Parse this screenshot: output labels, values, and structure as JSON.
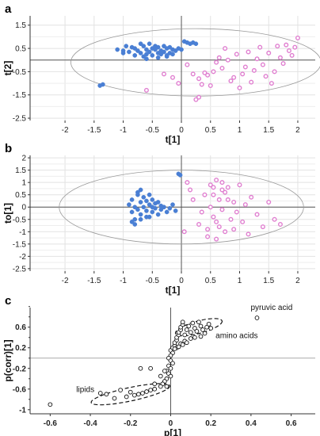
{
  "chart_data": [
    {
      "type": "scatter",
      "panel_label": "a",
      "xlabel": "t[1]",
      "ylabel": "t[2]",
      "xlim": [
        -2.6,
        2.3
      ],
      "ylim": [
        -2.6,
        1.9
      ],
      "x_ticks": [
        -2,
        -1.5,
        -1,
        -0.5,
        0,
        0.5,
        1,
        1.5,
        2
      ],
      "x_tick_labels": [
        "-2",
        "-1.5",
        "-1",
        "-0.5",
        "0",
        "0.5",
        "1",
        "1.5",
        "2"
      ],
      "y_ticks": [
        1.5,
        0.5,
        -0.5,
        -1.5,
        -2.5
      ],
      "y_tick_labels": [
        "1.5",
        "0.5",
        "-0.5",
        "-1.5",
        "-2.5"
      ],
      "grid": true,
      "ellipse": {
        "center": [
          0.25,
          -0.1
        ],
        "radii": [
          2.15,
          1.45
        ]
      },
      "colors": {
        "group1": "#4a7fd4",
        "group2": "#e07fd0"
      },
      "series": [
        {
          "group": "group1",
          "marker": "filled",
          "x": [
            -1.4,
            -1.35,
            -1.1,
            -1.0,
            -1.0,
            -0.95,
            -0.9,
            -0.85,
            -0.8,
            -0.8,
            -0.75,
            -0.7,
            -0.7,
            -0.65,
            -0.65,
            -0.6,
            -0.6,
            -0.55,
            -0.55,
            -0.5,
            -0.5,
            -0.45,
            -0.45,
            -0.4,
            -0.4,
            -0.35,
            -0.35,
            -0.3,
            -0.3,
            -0.25,
            -0.25,
            -0.2,
            -0.2,
            -0.15,
            -0.15,
            -0.1,
            -0.05,
            0.0,
            0.05,
            0.1,
            0.15,
            0.2,
            0.25,
            -0.6,
            -0.4,
            -0.25
          ],
          "y": [
            -1.1,
            -1.05,
            0.45,
            0.3,
            0.4,
            0.6,
            0.35,
            0.55,
            0.2,
            0.5,
            0.4,
            0.7,
            0.3,
            0.6,
            0.15,
            0.45,
            0.25,
            0.7,
            0.35,
            0.5,
            0.2,
            0.45,
            0.6,
            0.3,
            0.55,
            0.4,
            0.25,
            0.6,
            0.35,
            0.5,
            0.2,
            0.55,
            0.3,
            0.45,
            0.25,
            0.4,
            0.5,
            0.45,
            0.8,
            0.75,
            0.7,
            0.75,
            0.7,
            0.05,
            0.1,
            0.15
          ]
        },
        {
          "group": "group2",
          "marker": "open",
          "x": [
            0.2,
            0.25,
            0.3,
            0.35,
            0.4,
            0.45,
            0.5,
            0.55,
            0.6,
            0.65,
            0.7,
            0.75,
            0.8,
            0.85,
            0.9,
            0.95,
            1.0,
            1.05,
            1.1,
            1.15,
            1.2,
            1.25,
            1.3,
            1.35,
            1.4,
            1.45,
            1.5,
            1.55,
            1.6,
            1.65,
            1.7,
            1.75,
            1.8,
            1.85,
            1.9,
            1.95,
            2.0,
            -0.3,
            -0.15,
            -0.05,
            0.1,
            0.3,
            -0.6
          ],
          "y": [
            -0.6,
            -1.7,
            -0.8,
            -1.05,
            -0.55,
            -0.65,
            -1.1,
            -0.5,
            -0.1,
            0.1,
            -0.35,
            0.5,
            0.0,
            -0.9,
            -0.75,
            0.25,
            -1.2,
            -0.6,
            -0.3,
            0.35,
            -0.95,
            -0.45,
            0.05,
            0.55,
            -0.2,
            -0.7,
            0.3,
            -1.0,
            -0.5,
            0.6,
            0.1,
            -0.15,
            0.65,
            0.4,
            0.2,
            0.55,
            0.95,
            -0.6,
            -0.75,
            -1.0,
            -0.2,
            -1.6,
            -1.3
          ]
        }
      ]
    },
    {
      "type": "scatter",
      "panel_label": "b",
      "xlabel": "t[1]",
      "ylabel": "to[1]",
      "xlim": [
        -2.6,
        2.3
      ],
      "ylim": [
        -2.6,
        2.1
      ],
      "x_ticks": [
        -2,
        -1.5,
        -1,
        -0.5,
        0,
        0.5,
        1,
        1.5,
        2
      ],
      "x_tick_labels": [
        "-2",
        "-1.5",
        "-1",
        "-0.5",
        "0",
        "0.5",
        "1",
        "1.5",
        "2"
      ],
      "y_ticks": [
        2,
        1.5,
        1,
        0.5,
        0,
        -0.5,
        -1,
        -1.5,
        -2,
        -2.5
      ],
      "y_tick_labels": [
        "2",
        "1.5",
        "1",
        "0.5",
        "0",
        "-0.5",
        "-1",
        "-1.5",
        "-2",
        "-2.5"
      ],
      "grid": true,
      "ellipse": {
        "center": [
          0.0,
          0.0
        ],
        "radii": [
          2.1,
          1.5
        ]
      },
      "colors": {
        "group1": "#4a7fd4",
        "group2": "#e07fd0"
      },
      "series": [
        {
          "group": "group1",
          "marker": "filled",
          "x": [
            -0.9,
            -0.85,
            -0.85,
            -0.8,
            -0.8,
            -0.75,
            -0.75,
            -0.7,
            -0.7,
            -0.7,
            -0.65,
            -0.65,
            -0.6,
            -0.6,
            -0.55,
            -0.55,
            -0.55,
            -0.5,
            -0.5,
            -0.5,
            -0.45,
            -0.45,
            -0.4,
            -0.4,
            -0.35,
            -0.35,
            -0.3,
            -0.25,
            -0.2,
            -0.15,
            -0.1,
            -0.85,
            -0.8,
            -0.75,
            -0.7,
            -0.6,
            -0.05,
            -0.02
          ],
          "y": [
            0.1,
            -0.2,
            0.3,
            -0.5,
            0.0,
            0.6,
            -0.1,
            0.2,
            -0.3,
            0.7,
            0.0,
            0.4,
            -0.15,
            0.25,
            0.1,
            -0.4,
            0.5,
            0.0,
            0.3,
            -0.2,
            0.15,
            -0.05,
            0.2,
            -0.3,
            0.05,
            -0.1,
            0.0,
            -0.2,
            -0.05,
            0.1,
            -0.15,
            -0.6,
            -0.7,
            0.5,
            -0.5,
            -0.4,
            1.35,
            1.3
          ]
        },
        {
          "group": "group2",
          "marker": "open",
          "x": [
            0.1,
            0.15,
            0.2,
            0.3,
            0.35,
            0.4,
            0.45,
            0.5,
            0.5,
            0.55,
            0.6,
            0.6,
            0.65,
            0.65,
            0.7,
            0.7,
            0.75,
            0.75,
            0.8,
            0.85,
            0.9,
            0.95,
            1.0,
            1.05,
            1.1,
            1.15,
            1.2,
            1.3,
            1.4,
            1.5,
            1.6,
            1.7,
            0.05,
            0.55,
            0.6,
            0.7,
            0.8,
            0.9,
            0.45,
            0.55
          ],
          "y": [
            1.0,
            0.7,
            0.3,
            -0.7,
            -0.2,
            0.5,
            -0.9,
            0.0,
            0.9,
            -0.4,
            1.1,
            -1.3,
            0.3,
            -0.8,
            1.0,
            -0.1,
            0.6,
            -1.0,
            0.8,
            -0.5,
            0.2,
            -0.2,
            0.9,
            -0.6,
            0.1,
            -1.1,
            0.4,
            -0.3,
            -0.8,
            0.2,
            -0.5,
            -0.7,
            -1.0,
            0.5,
            -0.6,
            0.7,
            0.3,
            -0.9,
            -1.2,
            0.8
          ]
        }
      ]
    },
    {
      "type": "scatter",
      "panel_label": "c",
      "xlabel": "p[1]",
      "ylabel": "p(corr)[1]",
      "xlim": [
        -0.7,
        0.72
      ],
      "ylim": [
        -1.08,
        0.98
      ],
      "x_ticks": [
        -0.6,
        -0.4,
        -0.2,
        0,
        0.2,
        0.4,
        0.6
      ],
      "x_tick_labels": [
        "-0.6",
        "-0.4",
        "-0.2",
        "0",
        "0.2",
        "0.4",
        "0.6"
      ],
      "y_ticks": [
        0.6,
        0.2,
        -0.2,
        -0.6,
        -1
      ],
      "y_tick_labels": [
        "0.6",
        "0.2",
        "-0.2",
        "-0.6",
        "-1"
      ],
      "extra_y_ticks": [
        1,
        0.8,
        0.4,
        0,
        -0.4,
        -0.8
      ],
      "grid": false,
      "annotations": {
        "pyruvic": "pyruvic acid",
        "amino": "amino acids",
        "lipids": "lipids"
      },
      "groups_outlined": [
        {
          "name": "amino acids",
          "center": [
            0.14,
            0.6
          ],
          "radii": [
            0.12,
            0.12
          ],
          "rotate": -15
        },
        {
          "name": "lipids",
          "center": [
            -0.2,
            -0.7
          ],
          "radii": [
            0.2,
            0.13
          ],
          "rotate": -12
        }
      ],
      "series": [
        {
          "marker": "open",
          "x": [
            0.43,
            0.0,
            0.01,
            0.02,
            0.02,
            0.03,
            0.03,
            0.04,
            0.04,
            0.05,
            0.05,
            0.06,
            0.06,
            0.07,
            0.08,
            0.09,
            0.1,
            0.11,
            0.12,
            0.13,
            0.14,
            0.15,
            0.16,
            0.17,
            0.18,
            0.19,
            0.2,
            0.03,
            0.05,
            0.07,
            0.1,
            0.12,
            0.15,
            0.02,
            0.04,
            0.06,
            0.08,
            0.01,
            0.0,
            -0.01,
            0.0,
            0.01,
            -0.01,
            0.0,
            -0.02,
            -0.01,
            0.0,
            -0.02,
            -0.03,
            -0.04,
            -0.05,
            -0.08,
            -0.1,
            -0.12,
            -0.14,
            -0.16,
            -0.18,
            -0.2,
            -0.22,
            -0.25,
            -0.28,
            -0.32,
            -0.35,
            -0.6,
            -0.05,
            -0.03,
            -0.02,
            -0.15,
            -0.1,
            -0.08
          ],
          "y": [
            0.78,
            0.15,
            0.2,
            0.25,
            0.3,
            0.35,
            0.4,
            0.45,
            0.5,
            0.55,
            0.6,
            0.65,
            0.7,
            0.45,
            0.55,
            0.62,
            0.5,
            0.68,
            0.58,
            0.52,
            0.7,
            0.62,
            0.55,
            0.48,
            0.6,
            0.66,
            0.58,
            0.2,
            0.28,
            0.33,
            0.38,
            0.4,
            0.42,
            0.18,
            0.22,
            0.26,
            0.3,
            0.1,
            0.05,
            0.0,
            -0.05,
            -0.1,
            -0.15,
            -0.2,
            -0.25,
            -0.3,
            -0.35,
            -0.4,
            -0.45,
            -0.5,
            -0.55,
            -0.6,
            -0.62,
            -0.65,
            -0.68,
            -0.7,
            -0.72,
            -0.66,
            -0.75,
            -0.62,
            -0.78,
            -0.7,
            -0.68,
            -0.9,
            -0.35,
            -0.25,
            -0.55,
            -0.2,
            -0.2,
            -0.5
          ]
        }
      ]
    }
  ]
}
